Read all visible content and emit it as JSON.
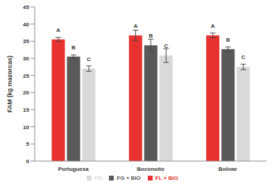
{
  "chart_data": {
    "type": "bar",
    "y_label": "FAM (kg mazorcas)",
    "categories": [
      "Portuguesa",
      "Boconoíto",
      "Bolívar"
    ],
    "series": [
      {
        "name": "FL + BIO",
        "color": "#e8322f",
        "values": [
          35.5,
          36.7,
          36.7
        ],
        "errors": [
          0.6,
          1.5,
          0.7
        ],
        "labels": [
          "A",
          "A",
          "A"
        ]
      },
      {
        "name": "FG + BIO",
        "color": "#595959",
        "values": [
          30.5,
          33.8,
          32.7
        ],
        "errors": [
          0.5,
          1.8,
          0.6
        ],
        "labels": [
          "B",
          "B",
          "B"
        ]
      },
      {
        "name": "FG",
        "color": "#d9d9d9",
        "values": [
          27,
          30.8,
          27.5
        ],
        "errors": [
          0.8,
          2,
          0.8
        ],
        "labels": [
          "C",
          "C",
          "C"
        ]
      }
    ],
    "ylim": [
      0,
      45
    ],
    "yticks": [
      0,
      5,
      10,
      15,
      20,
      25,
      30,
      35,
      40,
      45
    ],
    "grid": false,
    "legend": "bottom"
  }
}
